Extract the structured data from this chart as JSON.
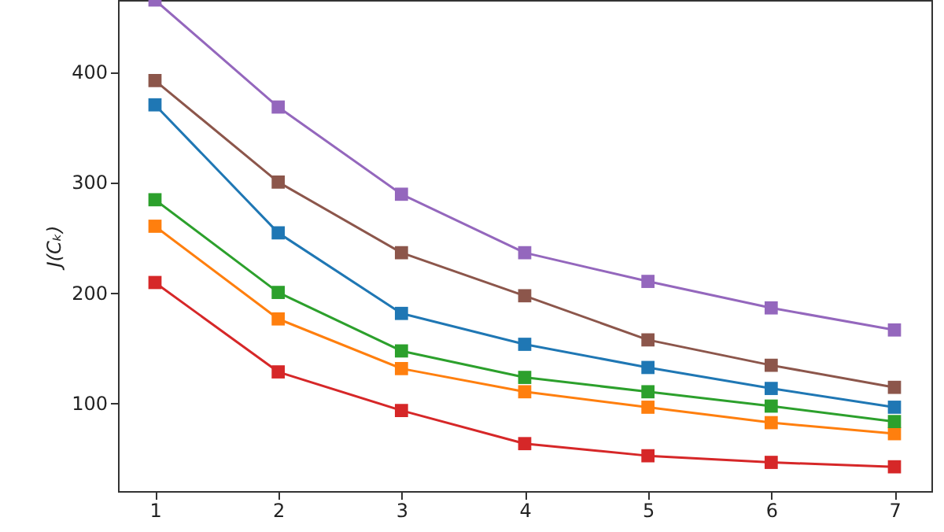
{
  "chart_data": {
    "type": "line",
    "ylabel": "J(Cₖ)",
    "x": [
      1,
      2,
      3,
      4,
      5,
      6,
      7
    ],
    "xlim": [
      0.7,
      7.3
    ],
    "xticks": [
      1,
      2,
      3,
      4,
      5,
      6,
      7
    ],
    "ylim": [
      20,
      465
    ],
    "yticks": [
      100,
      200,
      300,
      400
    ],
    "grid": false,
    "marker": "square",
    "series": [
      {
        "color": "#1f77b4",
        "values": [
          370,
          254,
          181,
          153,
          132,
          113,
          96
        ]
      },
      {
        "color": "#ff7f0e",
        "values": [
          260,
          176,
          131,
          110,
          96,
          82,
          72
        ]
      },
      {
        "color": "#2ca02c",
        "values": [
          284,
          200,
          147,
          123,
          110,
          97,
          83
        ]
      },
      {
        "color": "#d62728",
        "values": [
          209,
          128,
          93,
          63,
          52,
          46,
          42
        ]
      },
      {
        "color": "#9467bd",
        "values": [
          465,
          368,
          289,
          236,
          210,
          186,
          166
        ]
      },
      {
        "color": "#8c564b",
        "values": [
          392,
          300,
          236,
          197,
          157,
          134,
          114
        ]
      }
    ]
  }
}
